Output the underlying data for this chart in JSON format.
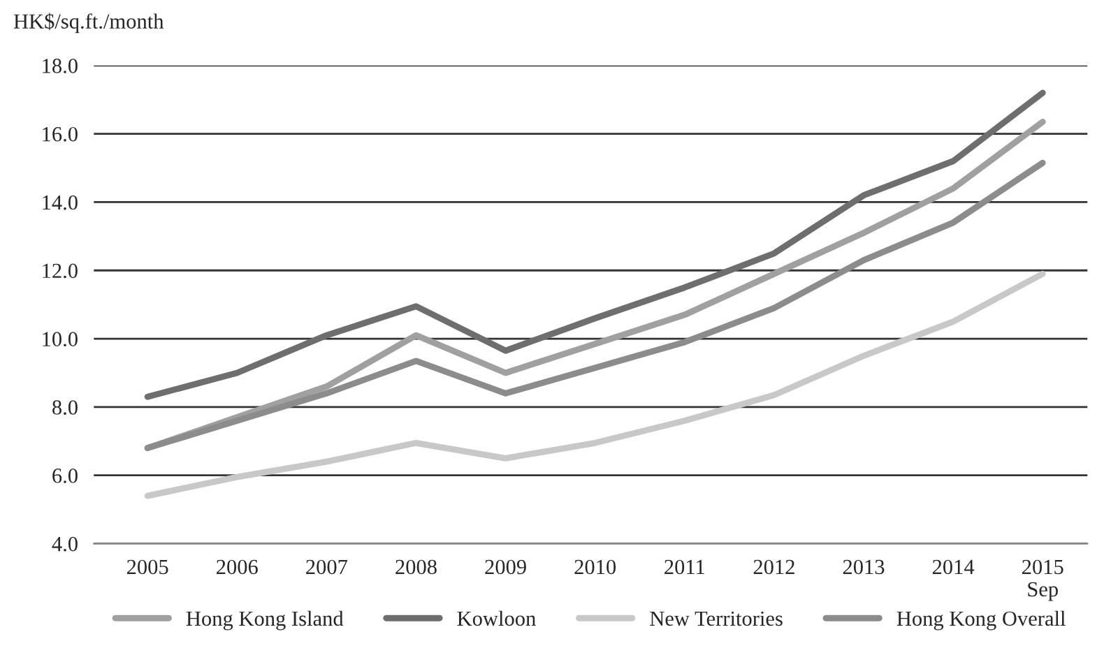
{
  "chart_data": {
    "type": "line",
    "ylabel": "HK$/sq.ft./month",
    "categories": [
      "2005",
      "2006",
      "2007",
      "2008",
      "2009",
      "2010",
      "2011",
      "2012",
      "2013",
      "2014",
      "2015\nSep"
    ],
    "series": [
      {
        "name": "Hong Kong Island",
        "color": "#a0a0a0",
        "values": [
          6.8,
          7.7,
          8.6,
          10.1,
          9.0,
          9.85,
          10.7,
          11.9,
          13.1,
          14.4,
          16.35
        ]
      },
      {
        "name": "Kowloon",
        "color": "#6e6e6e",
        "values": [
          8.3,
          9.0,
          10.1,
          10.95,
          9.65,
          10.6,
          11.5,
          12.5,
          14.2,
          15.2,
          17.2
        ]
      },
      {
        "name": "New Territories",
        "color": "#c8c8c8",
        "values": [
          5.4,
          5.95,
          6.4,
          6.95,
          6.5,
          6.95,
          7.6,
          8.35,
          9.5,
          10.5,
          11.9
        ]
      },
      {
        "name": "Hong Kong Overall",
        "color": "#8c8c8c",
        "values": [
          6.8,
          7.6,
          8.4,
          9.35,
          8.4,
          9.15,
          9.9,
          10.9,
          12.3,
          13.4,
          15.15
        ]
      }
    ],
    "ylim": [
      4,
      18
    ],
    "yticks": [
      {
        "value": 4,
        "label": "4.0"
      },
      {
        "value": 6,
        "label": "6.0"
      },
      {
        "value": 8,
        "label": "8.0"
      },
      {
        "value": 10,
        "label": "10.0"
      },
      {
        "value": 12,
        "label": "12.0"
      },
      {
        "value": 14,
        "label": "14.0"
      },
      {
        "value": 16,
        "label": "16.0"
      },
      {
        "value": 18,
        "label": "18.0"
      }
    ],
    "grid": "y",
    "legend": "bottom",
    "marker": "none",
    "line_style": "solid"
  }
}
